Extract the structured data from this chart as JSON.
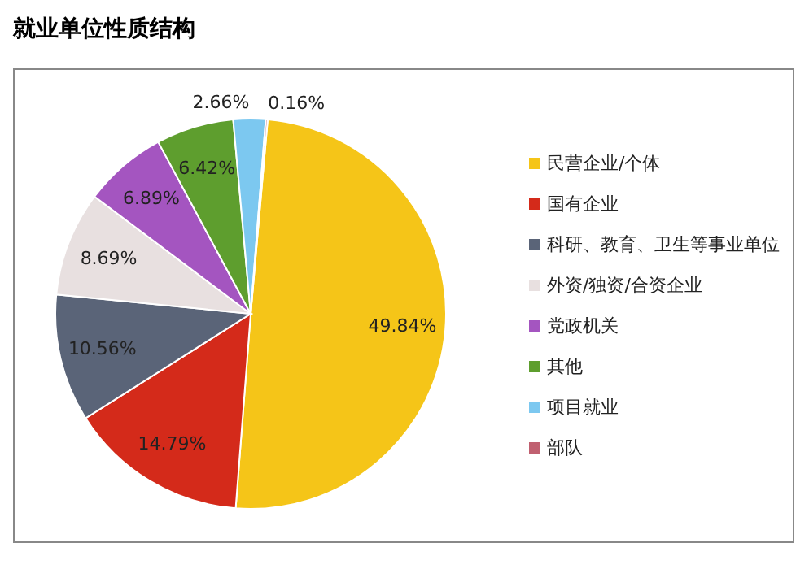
{
  "chart_data": {
    "type": "pie",
    "title": "就业单位性质结构",
    "categories": [
      "民营企业/个体",
      "国有企业",
      "科研、教育、卫生等事业单位",
      "外资/独资/合资企业",
      "党政机关",
      "其他",
      "项目就业",
      "部队"
    ],
    "values": [
      49.84,
      14.79,
      10.56,
      8.69,
      6.89,
      6.42,
      2.66,
      0.16
    ],
    "value_labels": [
      "49.84%",
      "14.79%",
      "10.56%",
      "8.69%",
      "6.89%",
      "6.42%",
      "2.66%",
      "0.16%"
    ],
    "colors": [
      "#f5c518",
      "#d42a1a",
      "#5a6478",
      "#e8e0e0",
      "#a455c0",
      "#5e9e2e",
      "#7cc8f0",
      "#c06070"
    ],
    "legend": "right"
  }
}
